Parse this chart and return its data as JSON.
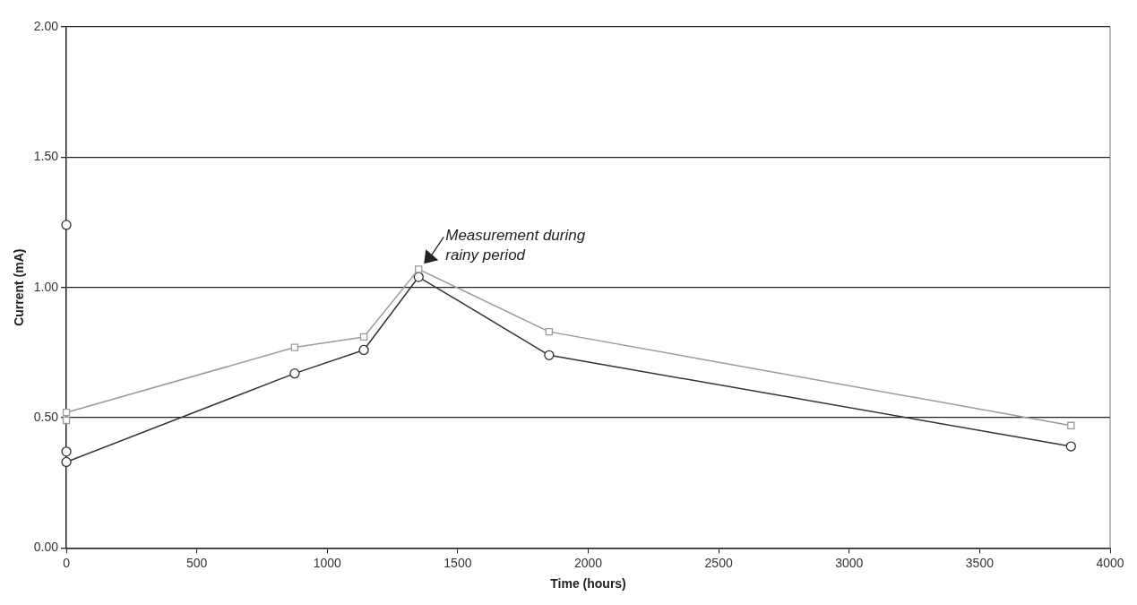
{
  "chart_data": {
    "type": "line",
    "xlabel": "Time (hours)",
    "ylabel": "Current (mA)",
    "xlim": [
      0,
      4000
    ],
    "xticks": [
      0,
      500,
      1000,
      1500,
      2000,
      2500,
      3000,
      3500,
      4000
    ],
    "ylim": [
      0,
      2
    ],
    "yticks": [
      {
        "value": 0,
        "label": "0.00"
      },
      {
        "value": 0.5,
        "label": "0.50"
      },
      {
        "value": 1,
        "label": "1.00"
      },
      {
        "value": 1.5,
        "label": "1.50"
      },
      {
        "value": 2,
        "label": "2.00"
      }
    ],
    "grid": "y",
    "legend": false,
    "series": [
      {
        "color": "#9a9a9a",
        "marker": "square",
        "x": [
          0,
          875,
          1140,
          1350,
          1850,
          3850
        ],
        "values": [
          0.52,
          0.77,
          0.81,
          1.07,
          0.83,
          0.47
        ]
      },
      {
        "type": "scatter",
        "color": "#9a9a9a",
        "marker": "square",
        "x": [
          0
        ],
        "values": [
          0.49
        ]
      },
      {
        "color": "#333333",
        "marker": "circle",
        "x": [
          0,
          875,
          1140,
          1350,
          1850,
          3850
        ],
        "values": [
          0.33,
          0.67,
          0.76,
          1.04,
          0.74,
          0.39
        ]
      },
      {
        "type": "scatter",
        "color": "#333333",
        "marker": "circle",
        "x": [
          0,
          0
        ],
        "values": [
          1.24,
          0.37
        ]
      }
    ],
    "annotations": [
      {
        "text": "Measurement during\nrainy period",
        "x": 1350,
        "y": 1.07
      }
    ]
  }
}
